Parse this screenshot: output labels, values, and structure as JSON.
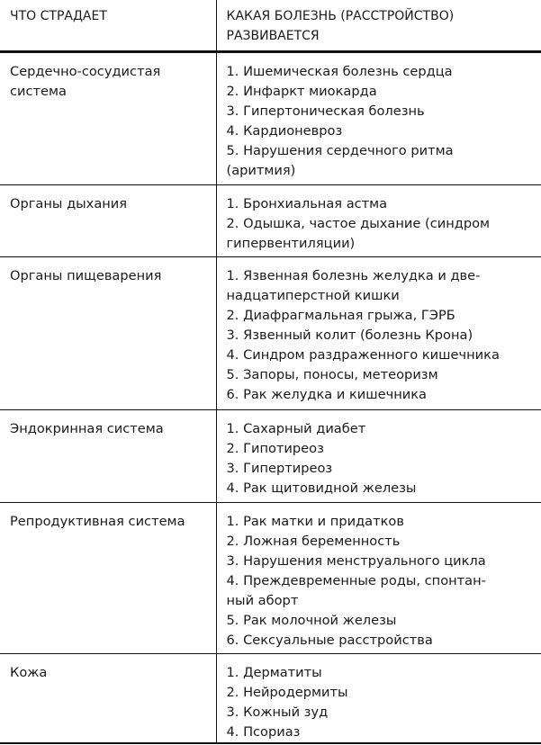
{
  "header": {
    "col1": "ЧТО СТРАДАЕТ",
    "col2": "КАКАЯ БОЛЕЗНЬ (РАССТРОЙСТВО)\nРАЗВИВАЕТСЯ"
  },
  "rows": [
    {
      "system": "Сердечно-сосудистая\nсистема",
      "diseases": [
        "1. Ишемическая болезнь сердца",
        "2. Инфаркт миокарда",
        "3. Гипертоническая болезнь",
        "4. Кардионевроз",
        "5. Нарушения сердечного ритма\n(аритмия)"
      ]
    },
    {
      "system": "Органы дыхания",
      "diseases": [
        "1. Бронхиальная астма",
        "2. Одышка, частое дыхание (синдром\nгипервентиляции)"
      ]
    },
    {
      "system": "Органы пищеварения",
      "diseases": [
        "1. Язвенная болезнь желудка и две-\nнадцатиперстной кишки",
        "2. Диафрагмальная грыжа, ГЭРБ",
        "3. Язвенный колит (болезнь Крона)",
        "4. Синдром раздраженного кишечника",
        "5. Запоры, поносы, метеоризм",
        "6. Рак желудка и кишечника"
      ]
    },
    {
      "system": "Эндокринная система",
      "diseases": [
        "1. Сахарный диабет",
        "2. Гипотиреоз",
        "3. Гипертиреоз",
        "4. Рак щитовидной железы"
      ]
    },
    {
      "system": "Репродуктивная система",
      "diseases": [
        "1. Рак матки и придатков",
        "2. Ложная беременность",
        "3. Нарушения менструального цикла",
        "4. Преждевременные роды, спонтан-\nный аборт",
        "5. Рак молочной железы",
        "6. Сексуальные расстройства"
      ]
    },
    {
      "system": "Кожа",
      "diseases": [
        "1. Дерматиты",
        "2. Нейродермиты",
        "3. Кожный зуд",
        "4. Псориаз"
      ]
    }
  ]
}
